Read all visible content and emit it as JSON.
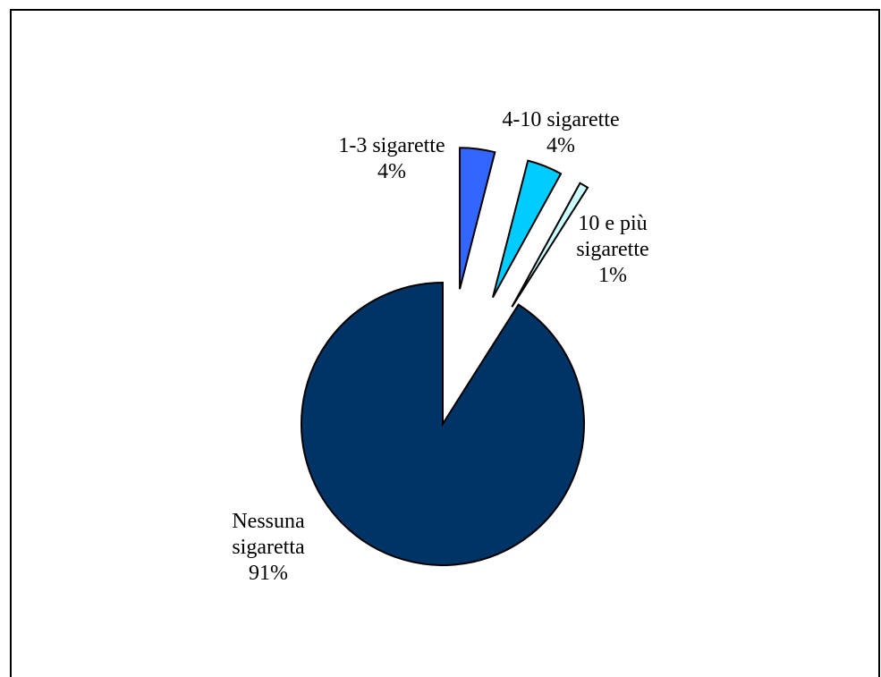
{
  "chart_data": {
    "type": "pie",
    "slices": [
      {
        "name": "Nessuna sigaretta",
        "label_lines": [
          "Nessuna",
          "sigaretta"
        ],
        "value": 91,
        "value_label": "91%",
        "color": "#003366"
      },
      {
        "name": "1-3 sigarette",
        "label_lines": [
          "1-3 sigarette"
        ],
        "value": 4,
        "value_label": "4%",
        "color": "#3366FF"
      },
      {
        "name": "4-10 sigarette",
        "label_lines": [
          "4-10 sigarette"
        ],
        "value": 4,
        "value_label": "4%",
        "color": "#00CCFF"
      },
      {
        "name": "10 e più sigarette",
        "label_lines": [
          "10 e più",
          "sigarette"
        ],
        "value": 1,
        "value_label": "1%",
        "color": "#CCFFFF"
      }
    ],
    "legend": "none",
    "outline_color": "#000000"
  }
}
